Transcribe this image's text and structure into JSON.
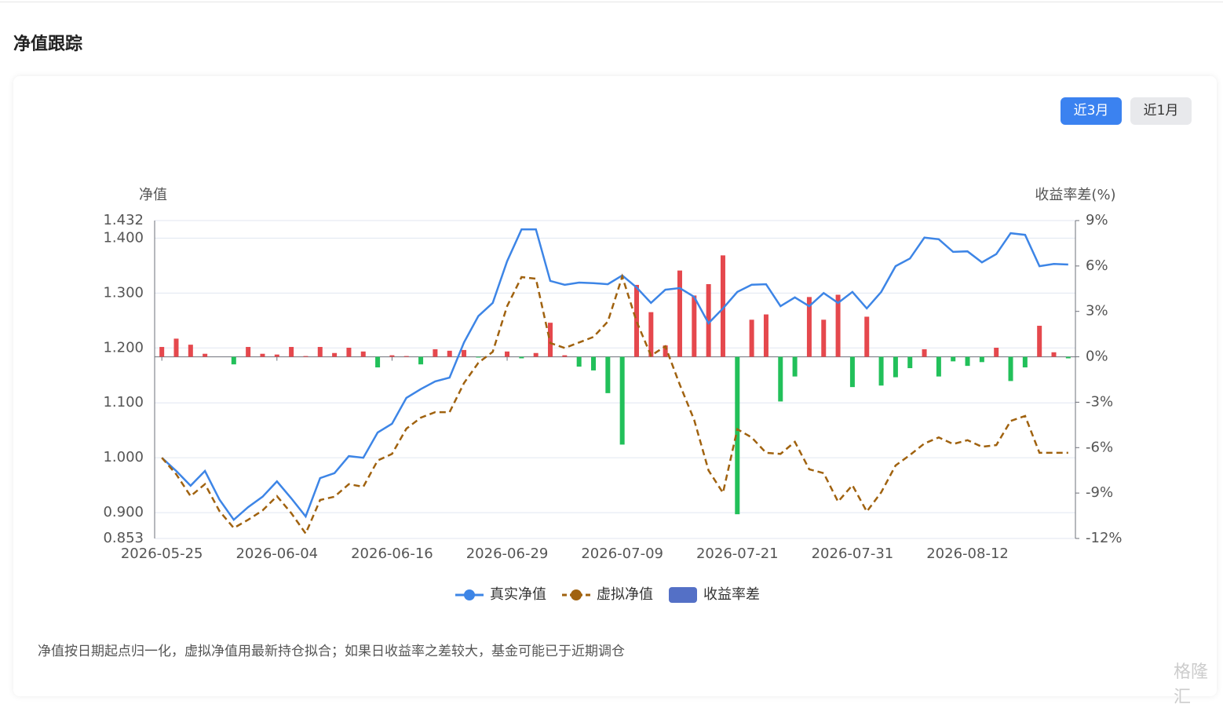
{
  "header": {
    "title": "净值跟踪"
  },
  "buttons": [
    "近3月",
    "近1月"
  ],
  "chart_data": {
    "type": "line",
    "y_label": "净值",
    "y2_label": "收益率差(%)",
    "categories": [
      "2026-05-25",
      null,
      null,
      null,
      null,
      null,
      null,
      null,
      "2026-06-04",
      null,
      null,
      null,
      null,
      null,
      null,
      null,
      "2026-06-16",
      null,
      null,
      null,
      null,
      null,
      null,
      null,
      "2026-06-29",
      null,
      null,
      null,
      null,
      null,
      null,
      null,
      "2026-07-09",
      null,
      null,
      null,
      null,
      null,
      null,
      null,
      "2026-07-21",
      null,
      null,
      null,
      null,
      null,
      null,
      null,
      "2026-07-31",
      null,
      null,
      null,
      null,
      null,
      null,
      null,
      "2026-08-12",
      null,
      null,
      null,
      null,
      null,
      null,
      null
    ],
    "ylim": [
      0.853,
      1.432
    ],
    "yticks": [
      0.853,
      {
        "value": 0.9,
        "label": "0.900"
      },
      {
        "value": 1.0,
        "label": "1.000"
      },
      {
        "value": 1.1,
        "label": "1.100"
      },
      {
        "value": 1.2,
        "label": "1.200"
      },
      {
        "value": 1.3,
        "label": "1.300"
      },
      {
        "value": 1.4,
        "label": "1.400"
      },
      1.432
    ],
    "y2lim": [
      -12,
      9
    ],
    "y2ticks": [
      {
        "value": -12,
        "label": "-12%"
      },
      {
        "value": -9,
        "label": "-9%"
      },
      {
        "value": -6,
        "label": "-6%"
      },
      {
        "value": -3,
        "label": "-3%"
      },
      {
        "value": 0,
        "label": "0%"
      },
      {
        "value": 3,
        "label": "3%"
      },
      {
        "value": 6,
        "label": "6%"
      },
      {
        "value": 9,
        "label": "9%"
      }
    ],
    "grid": true,
    "legend": "bottom",
    "series": [
      {
        "name": "真实净值",
        "type": "line",
        "style": "solid",
        "color": "#3d85e6",
        "values": [
          1.0,
          0.976,
          0.949,
          0.976,
          0.924,
          0.887,
          0.91,
          0.929,
          0.957,
          0.926,
          0.893,
          0.963,
          0.972,
          1.003,
          1.0,
          1.046,
          1.062,
          1.109,
          1.125,
          1.139,
          1.146,
          1.21,
          1.258,
          1.282,
          1.358,
          1.416,
          1.416,
          1.322,
          1.315,
          1.319,
          1.318,
          1.316,
          1.332,
          1.31,
          1.282,
          1.306,
          1.309,
          1.293,
          1.245,
          1.272,
          1.302,
          1.315,
          1.316,
          1.276,
          1.292,
          1.276,
          1.3,
          1.282,
          1.302,
          1.272,
          1.302,
          1.349,
          1.363,
          1.401,
          1.398,
          1.375,
          1.376,
          1.356,
          1.371,
          1.409,
          1.406,
          1.349,
          1.353,
          1.352
        ]
      },
      {
        "name": "虚拟净值",
        "type": "line",
        "style": "dashed",
        "color": "#a0620f",
        "values": [
          1.0,
          0.97,
          0.93,
          0.952,
          0.903,
          0.872,
          0.887,
          0.904,
          0.93,
          0.899,
          0.862,
          0.923,
          0.929,
          0.952,
          0.947,
          0.995,
          1.007,
          1.053,
          1.073,
          1.083,
          1.083,
          1.136,
          1.173,
          1.193,
          1.276,
          1.329,
          1.326,
          1.209,
          1.2,
          1.21,
          1.22,
          1.248,
          1.33,
          1.248,
          1.186,
          1.203,
          1.133,
          1.069,
          0.977,
          0.936,
          1.052,
          1.037,
          1.009,
          1.007,
          1.029,
          0.979,
          0.972,
          0.92,
          0.95,
          0.902,
          0.937,
          0.986,
          1.005,
          1.026,
          1.037,
          1.025,
          1.032,
          1.02,
          1.023,
          1.067,
          1.076,
          1.009,
          1.009,
          1.009
        ]
      },
      {
        "name": "收益率差",
        "type": "bar",
        "axis": "y2",
        "color": "#5470c6",
        "positive_color": "#e5484d",
        "negative_color": "#22c05a",
        "values": [
          0.65,
          1.2,
          0.8,
          0.2,
          0,
          -0.5,
          0.65,
          0.2,
          0.15,
          0.65,
          0.05,
          0.65,
          0.25,
          0.6,
          0.35,
          -0.7,
          0.1,
          0.05,
          -0.5,
          0.5,
          0.4,
          0.45,
          -0.05,
          0,
          0.35,
          -0.1,
          0.25,
          2.25,
          0.1,
          -0.65,
          -0.9,
          -2.4,
          -5.8,
          4.75,
          2.95,
          0.75,
          5.7,
          4.05,
          4.8,
          6.7,
          -10.4,
          2.45,
          2.8,
          -2.95,
          -1.3,
          3.95,
          2.45,
          4.1,
          -2.0,
          2.65,
          -1.9,
          -1.35,
          -0.75,
          0.5,
          -1.3,
          -0.3,
          -0.6,
          -0.35,
          0.6,
          -1.6,
          -0.7,
          2.05,
          0.3,
          -0.1
        ]
      }
    ]
  },
  "note": "净值按日期起点归一化，虚拟净值用最新持仓拟合；如果日收益率之差较大，基金可能已于近期调仓",
  "watermark": "格隆汇"
}
